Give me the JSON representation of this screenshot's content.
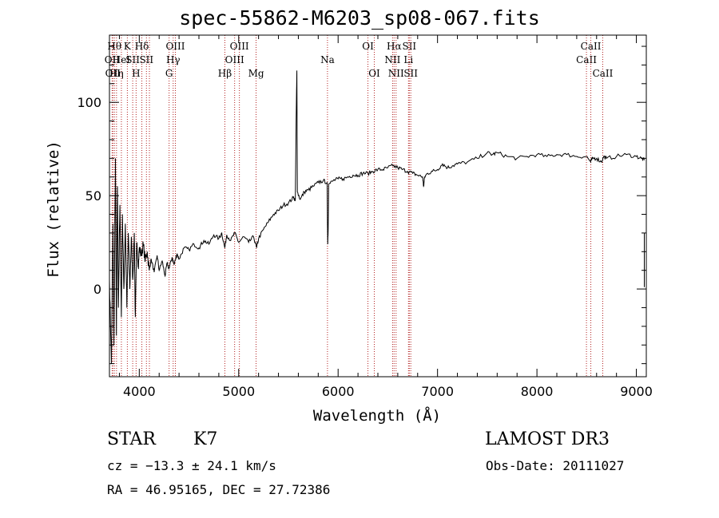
{
  "chart_data": {
    "type": "line",
    "title": "spec-55862-M6203_sp08-067.fits",
    "xlabel": "Wavelength (Å)",
    "ylabel": "Flux (relative)",
    "xlim": [
      3700,
      9100
    ],
    "ylim": [
      -47,
      136
    ],
    "x_ticks": [
      4000,
      5000,
      6000,
      7000,
      8000,
      9000
    ],
    "y_ticks": [
      0,
      50,
      100
    ],
    "grid": false,
    "series": [
      {
        "name": "flux",
        "points": [
          [
            3700,
            5
          ],
          [
            3720,
            -40
          ],
          [
            3735,
            35
          ],
          [
            3745,
            -30
          ],
          [
            3760,
            70
          ],
          [
            3770,
            -25
          ],
          [
            3780,
            55
          ],
          [
            3790,
            -10
          ],
          [
            3805,
            45
          ],
          [
            3820,
            -15
          ],
          [
            3830,
            40
          ],
          [
            3845,
            0
          ],
          [
            3860,
            35
          ],
          [
            3875,
            -10
          ],
          [
            3890,
            30
          ],
          [
            3905,
            0
          ],
          [
            3920,
            28
          ],
          [
            3935,
            5
          ],
          [
            3950,
            30
          ],
          [
            3960,
            -15
          ],
          [
            3975,
            25
          ],
          [
            3990,
            12
          ],
          [
            4000,
            22
          ],
          [
            4020,
            18
          ],
          [
            4040,
            24
          ],
          [
            4060,
            15
          ],
          [
            4080,
            20
          ],
          [
            4100,
            10
          ],
          [
            4120,
            16
          ],
          [
            4150,
            9
          ],
          [
            4180,
            18
          ],
          [
            4200,
            10
          ],
          [
            4230,
            15
          ],
          [
            4260,
            7
          ],
          [
            4280,
            14
          ],
          [
            4300,
            11
          ],
          [
            4330,
            17
          ],
          [
            4350,
            13
          ],
          [
            4380,
            19
          ],
          [
            4400,
            16
          ],
          [
            4450,
            22
          ],
          [
            4500,
            21
          ],
          [
            4550,
            24
          ],
          [
            4600,
            22
          ],
          [
            4650,
            26
          ],
          [
            4700,
            24
          ],
          [
            4750,
            29
          ],
          [
            4800,
            27
          ],
          [
            4830,
            30
          ],
          [
            4860,
            22
          ],
          [
            4880,
            29
          ],
          [
            4920,
            26
          ],
          [
            4960,
            30
          ],
          [
            5000,
            25
          ],
          [
            5050,
            28
          ],
          [
            5100,
            25
          ],
          [
            5150,
            28
          ],
          [
            5180,
            22
          ],
          [
            5200,
            27
          ],
          [
            5250,
            32
          ],
          [
            5300,
            36
          ],
          [
            5350,
            40
          ],
          [
            5400,
            42
          ],
          [
            5450,
            45
          ],
          [
            5500,
            46
          ],
          [
            5550,
            49
          ],
          [
            5570,
            48
          ],
          [
            5580,
            100
          ],
          [
            5585,
            117
          ],
          [
            5590,
            52
          ],
          [
            5620,
            48
          ],
          [
            5660,
            52
          ],
          [
            5700,
            53
          ],
          [
            5750,
            55
          ],
          [
            5800,
            57
          ],
          [
            5850,
            58
          ],
          [
            5890,
            57
          ],
          [
            5895,
            24
          ],
          [
            5900,
            32
          ],
          [
            5905,
            56
          ],
          [
            5950,
            58
          ],
          [
            6000,
            59
          ],
          [
            6050,
            59
          ],
          [
            6100,
            60
          ],
          [
            6150,
            61
          ],
          [
            6200,
            61
          ],
          [
            6250,
            62
          ],
          [
            6300,
            62
          ],
          [
            6350,
            63
          ],
          [
            6400,
            64
          ],
          [
            6450,
            64
          ],
          [
            6500,
            65
          ],
          [
            6550,
            66
          ],
          [
            6600,
            65
          ],
          [
            6650,
            64
          ],
          [
            6700,
            63
          ],
          [
            6750,
            62
          ],
          [
            6800,
            61
          ],
          [
            6850,
            60
          ],
          [
            6860,
            55
          ],
          [
            6870,
            60
          ],
          [
            6900,
            62
          ],
          [
            6950,
            63
          ],
          [
            7000,
            64
          ],
          [
            7050,
            67
          ],
          [
            7100,
            65
          ],
          [
            7150,
            66
          ],
          [
            7200,
            67
          ],
          [
            7300,
            68
          ],
          [
            7400,
            70
          ],
          [
            7500,
            73
          ],
          [
            7550,
            72
          ],
          [
            7600,
            73
          ],
          [
            7700,
            71
          ],
          [
            7800,
            70
          ],
          [
            7900,
            71
          ],
          [
            8000,
            72
          ],
          [
            8100,
            71
          ],
          [
            8200,
            72
          ],
          [
            8300,
            72
          ],
          [
            8400,
            71
          ],
          [
            8500,
            71
          ],
          [
            8540,
            68
          ],
          [
            8560,
            70
          ],
          [
            8600,
            70
          ],
          [
            8650,
            68
          ],
          [
            8670,
            71
          ],
          [
            8700,
            70
          ],
          [
            8800,
            71
          ],
          [
            8900,
            72
          ],
          [
            9000,
            71
          ],
          [
            9050,
            70
          ],
          [
            9080,
            69
          ]
        ]
      }
    ],
    "line_markers": [
      {
        "x": 3727,
        "label": "OII",
        "row": 2
      },
      {
        "x": 3734,
        "label": "OII",
        "row": 3
      },
      {
        "x": 3750,
        "label": "Hθ",
        "row": 1
      },
      {
        "x": 3771,
        "label": "Hη",
        "row": 3
      },
      {
        "x": 3820,
        "label": "HeI",
        "row": 2
      },
      {
        "x": 3880,
        "label": "K",
        "row": 1
      },
      {
        "x": 3934,
        "label": "SII",
        "row": 2
      },
      {
        "x": 3968,
        "label": "H",
        "row": 3
      },
      {
        "x": 4026,
        "label": "Hδ",
        "row": 1
      },
      {
        "x": 4072,
        "label": "SII",
        "row": 2
      },
      {
        "x": 4102,
        "label": "",
        "row": 0
      },
      {
        "x": 4300,
        "label": "G",
        "row": 3
      },
      {
        "x": 4341,
        "label": "Hγ",
        "row": 2
      },
      {
        "x": 4363,
        "label": "OIII",
        "row": 1
      },
      {
        "x": 4861,
        "label": "Hβ",
        "row": 3
      },
      {
        "x": 4959,
        "label": "OIII",
        "row": 2
      },
      {
        "x": 5007,
        "label": "OIII",
        "row": 1
      },
      {
        "x": 5175,
        "label": "Mg",
        "row": 3
      },
      {
        "x": 5893,
        "label": "Na",
        "row": 2
      },
      {
        "x": 6300,
        "label": "OI",
        "row": 1
      },
      {
        "x": 6364,
        "label": "OI",
        "row": 3
      },
      {
        "x": 6548,
        "label": "NII",
        "row": 2
      },
      {
        "x": 6563,
        "label": "Hα",
        "row": 1
      },
      {
        "x": 6583,
        "label": "NII",
        "row": 3
      },
      {
        "x": 6708,
        "label": "Li",
        "row": 2
      },
      {
        "x": 6716,
        "label": "SII",
        "row": 1
      },
      {
        "x": 6731,
        "label": "SII",
        "row": 3
      },
      {
        "x": 8498,
        "label": "CaII",
        "row": 2
      },
      {
        "x": 8542,
        "label": "CaII",
        "row": 1
      },
      {
        "x": 8662,
        "label": "CaII",
        "row": 3
      }
    ]
  },
  "info": {
    "class_label": "STAR",
    "subclass_label": "K7",
    "survey": "LAMOST DR3",
    "redshift_line": "cz = −13.3 ± 24.1 km/s",
    "obs_date": "Obs-Date: 20111027",
    "coords_line": "RA =  46.95165, DEC =  27.72386"
  },
  "colors": {
    "axis": "#000000",
    "spectrum": "#000000",
    "marker_line": "#b22222"
  }
}
